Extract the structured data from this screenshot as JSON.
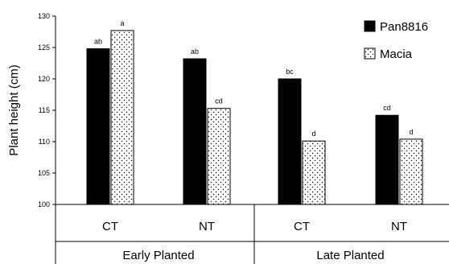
{
  "chart_data": {
    "type": "bar",
    "ylabel": "Plant height (cm)",
    "ylim": [
      100,
      130
    ],
    "yticks": [
      100,
      105,
      110,
      115,
      120,
      125,
      130
    ],
    "grid": false,
    "legend_position": "top-right",
    "groups": [
      {
        "label": "Early Planted",
        "categories": [
          "CT",
          "NT"
        ]
      },
      {
        "label": "Late Planted",
        "categories": [
          "CT",
          "NT"
        ]
      }
    ],
    "categories": [
      "CT",
      "NT",
      "CT",
      "NT"
    ],
    "series": [
      {
        "name": "Pan8816",
        "color": "#000000",
        "pattern": "solid",
        "values": [
          124.8,
          123.2,
          120.0,
          114.2
        ],
        "letters": [
          "ab",
          "ab",
          "bc",
          "cd"
        ]
      },
      {
        "name": "Macia",
        "color": "#ffffff",
        "pattern": "dotted",
        "values": [
          127.7,
          115.3,
          110.1,
          110.4
        ],
        "letters": [
          "a",
          "cd",
          "d",
          "d"
        ]
      }
    ]
  }
}
